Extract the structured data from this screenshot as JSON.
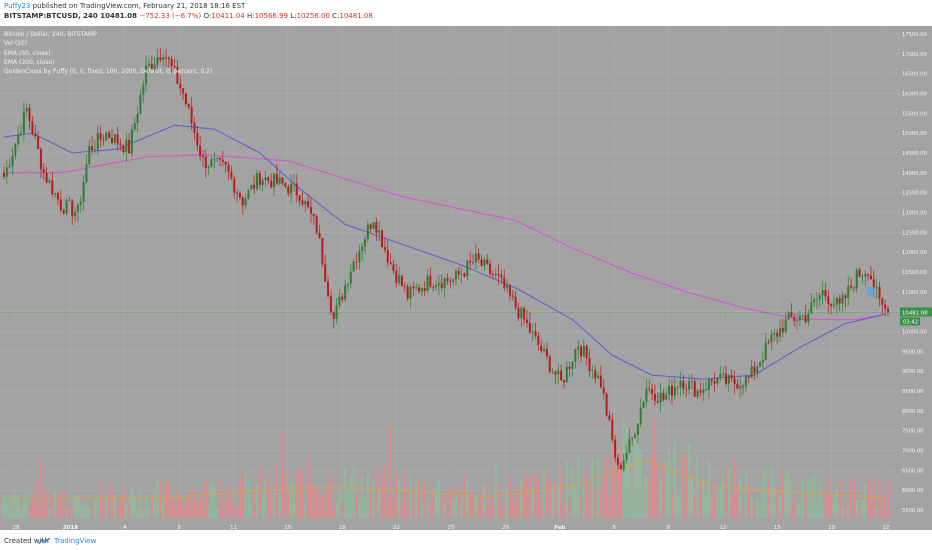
{
  "header": {
    "author": "Puffy23",
    "published": "published on TradingView.com, February 21, 2018 18:16 EST",
    "symbol": "BITSTAMP:BTCUSD, 240",
    "last": "10481.08",
    "change": "−752.33 (−6.7%)",
    "open_label": "O:",
    "open": "10411.04",
    "high_label": "H:",
    "high": "10566.99",
    "low_label": "L:",
    "low": "10256.00",
    "close_label": "C:",
    "close": "10481.08"
  },
  "legend": {
    "title": "Bitcoin / Dollar, 240, BITSTAMP",
    "vol": "Vol (20)",
    "ema50": "EMA (50, close)",
    "ema200": "EMA (200, close)",
    "golden": "GoldenCross by Puffy (0, 0, fixed, 100, 1000, Default, 0, percent, 0.2)"
  },
  "price_tags": {
    "price": "10481.08",
    "countdown": "03:42"
  },
  "markers": {
    "sell_label": "Sell\n...",
    "buy_label": ""
  },
  "footer": {
    "created_with": "Created with",
    "brand": "TradingView"
  },
  "colors": {
    "background": "#a3a3a3",
    "grid": "#b0b0b0",
    "up_candle": "#2e7d32",
    "down_candle": "#b71c1c",
    "ema50": "#5c5cd6",
    "ema200": "#d94fd9",
    "vol_up": "#8fbf9a",
    "vol_down": "#e6868a",
    "vol_ma": "#e8a040",
    "price_tag": "#3a8f4a",
    "current_line": "#3a8f4a"
  },
  "chart_data": {
    "type": "candlestick",
    "title": "Bitcoin / Dollar, 240, BITSTAMP",
    "xlabel": "",
    "ylabel": "",
    "x_ticks": [
      "28",
      "2018",
      "4",
      "8",
      "11",
      "15",
      "18",
      "22",
      "25",
      "29",
      "Feb",
      "5",
      "8",
      "12",
      "15",
      "19",
      "22"
    ],
    "y_ticks": [
      "17500.00",
      "17000.00",
      "16500.00",
      "16000.00",
      "15500.00",
      "15000.00",
      "14500.00",
      "14000.00",
      "13500.00",
      "13000.00",
      "12500.00",
      "12000.00",
      "11500.00",
      "11000.00",
      "10500.00",
      "10000.00",
      "9500.00",
      "9000.00",
      "8500.00",
      "8000.00",
      "7500.00",
      "7000.00",
      "6500.00",
      "6000.00",
      "5500.00"
    ],
    "ylim": [
      5300,
      17700
    ],
    "price_path": [
      {
        "i": 0,
        "close": 13900
      },
      {
        "i": 8,
        "close": 15600
      },
      {
        "i": 14,
        "close": 14000
      },
      {
        "i": 20,
        "close": 13200
      },
      {
        "i": 26,
        "close": 13000
      },
      {
        "i": 30,
        "close": 14600
      },
      {
        "i": 36,
        "close": 15000
      },
      {
        "i": 44,
        "close": 14600
      },
      {
        "i": 50,
        "close": 16600
      },
      {
        "i": 56,
        "close": 17100
      },
      {
        "i": 63,
        "close": 16000
      },
      {
        "i": 70,
        "close": 14300
      },
      {
        "i": 78,
        "close": 14100
      },
      {
        "i": 84,
        "close": 13300
      },
      {
        "i": 90,
        "close": 13900
      },
      {
        "i": 98,
        "close": 13700
      },
      {
        "i": 104,
        "close": 13500
      },
      {
        "i": 110,
        "close": 12600
      },
      {
        "i": 116,
        "close": 10300
      },
      {
        "i": 122,
        "close": 11600
      },
      {
        "i": 130,
        "close": 12900
      },
      {
        "i": 136,
        "close": 11700
      },
      {
        "i": 142,
        "close": 10900
      },
      {
        "i": 150,
        "close": 11300
      },
      {
        "i": 158,
        "close": 11300
      },
      {
        "i": 166,
        "close": 11800
      },
      {
        "i": 174,
        "close": 11300
      },
      {
        "i": 182,
        "close": 10400
      },
      {
        "i": 190,
        "close": 9400
      },
      {
        "i": 196,
        "close": 8700
      },
      {
        "i": 202,
        "close": 9700
      },
      {
        "i": 210,
        "close": 8700
      },
      {
        "i": 216,
        "close": 6500
      },
      {
        "i": 221,
        "close": 7300
      },
      {
        "i": 226,
        "close": 8600
      },
      {
        "i": 232,
        "close": 8300
      },
      {
        "i": 238,
        "close": 8800
      },
      {
        "i": 244,
        "close": 8500
      },
      {
        "i": 250,
        "close": 8800
      },
      {
        "i": 256,
        "close": 8700
      },
      {
        "i": 262,
        "close": 8800
      },
      {
        "i": 270,
        "close": 9800
      },
      {
        "i": 276,
        "close": 10300
      },
      {
        "i": 282,
        "close": 10400
      },
      {
        "i": 288,
        "close": 11000
      },
      {
        "i": 294,
        "close": 10600
      },
      {
        "i": 300,
        "close": 11400
      },
      {
        "i": 304,
        "close": 11600
      },
      {
        "i": 308,
        "close": 10700
      },
      {
        "i": 311,
        "close": 10481
      }
    ],
    "ema50_path": [
      {
        "i": 0,
        "v": 14900
      },
      {
        "i": 10,
        "v": 15000
      },
      {
        "i": 24,
        "v": 14500
      },
      {
        "i": 40,
        "v": 14600
      },
      {
        "i": 60,
        "v": 15200
      },
      {
        "i": 74,
        "v": 15100
      },
      {
        "i": 90,
        "v": 14500
      },
      {
        "i": 104,
        "v": 13600
      },
      {
        "i": 120,
        "v": 12700
      },
      {
        "i": 140,
        "v": 12200
      },
      {
        "i": 160,
        "v": 11700
      },
      {
        "i": 180,
        "v": 11100
      },
      {
        "i": 200,
        "v": 10300
      },
      {
        "i": 214,
        "v": 9400
      },
      {
        "i": 228,
        "v": 8900
      },
      {
        "i": 246,
        "v": 8800
      },
      {
        "i": 264,
        "v": 8900
      },
      {
        "i": 280,
        "v": 9600
      },
      {
        "i": 296,
        "v": 10200
      },
      {
        "i": 311,
        "v": 10450
      }
    ],
    "ema200_path": [
      {
        "i": 0,
        "v": 14000
      },
      {
        "i": 20,
        "v": 14000
      },
      {
        "i": 50,
        "v": 14400
      },
      {
        "i": 70,
        "v": 14450
      },
      {
        "i": 100,
        "v": 14300
      },
      {
        "i": 140,
        "v": 13400
      },
      {
        "i": 180,
        "v": 12800
      },
      {
        "i": 200,
        "v": 12100
      },
      {
        "i": 220,
        "v": 11500
      },
      {
        "i": 240,
        "v": 11000
      },
      {
        "i": 260,
        "v": 10600
      },
      {
        "i": 280,
        "v": 10300
      },
      {
        "i": 300,
        "v": 10300
      },
      {
        "i": 311,
        "v": 10450
      }
    ],
    "volume_ma_path": [
      {
        "i": 0,
        "v": 0.18
      },
      {
        "i": 60,
        "v": 0.2
      },
      {
        "i": 110,
        "v": 0.3
      },
      {
        "i": 130,
        "v": 0.28
      },
      {
        "i": 170,
        "v": 0.2
      },
      {
        "i": 200,
        "v": 0.3
      },
      {
        "i": 225,
        "v": 0.55
      },
      {
        "i": 250,
        "v": 0.3
      },
      {
        "i": 290,
        "v": 0.22
      },
      {
        "i": 311,
        "v": 0.2
      }
    ],
    "candle_count": 312,
    "grid": true,
    "legend_position": "top-left"
  }
}
